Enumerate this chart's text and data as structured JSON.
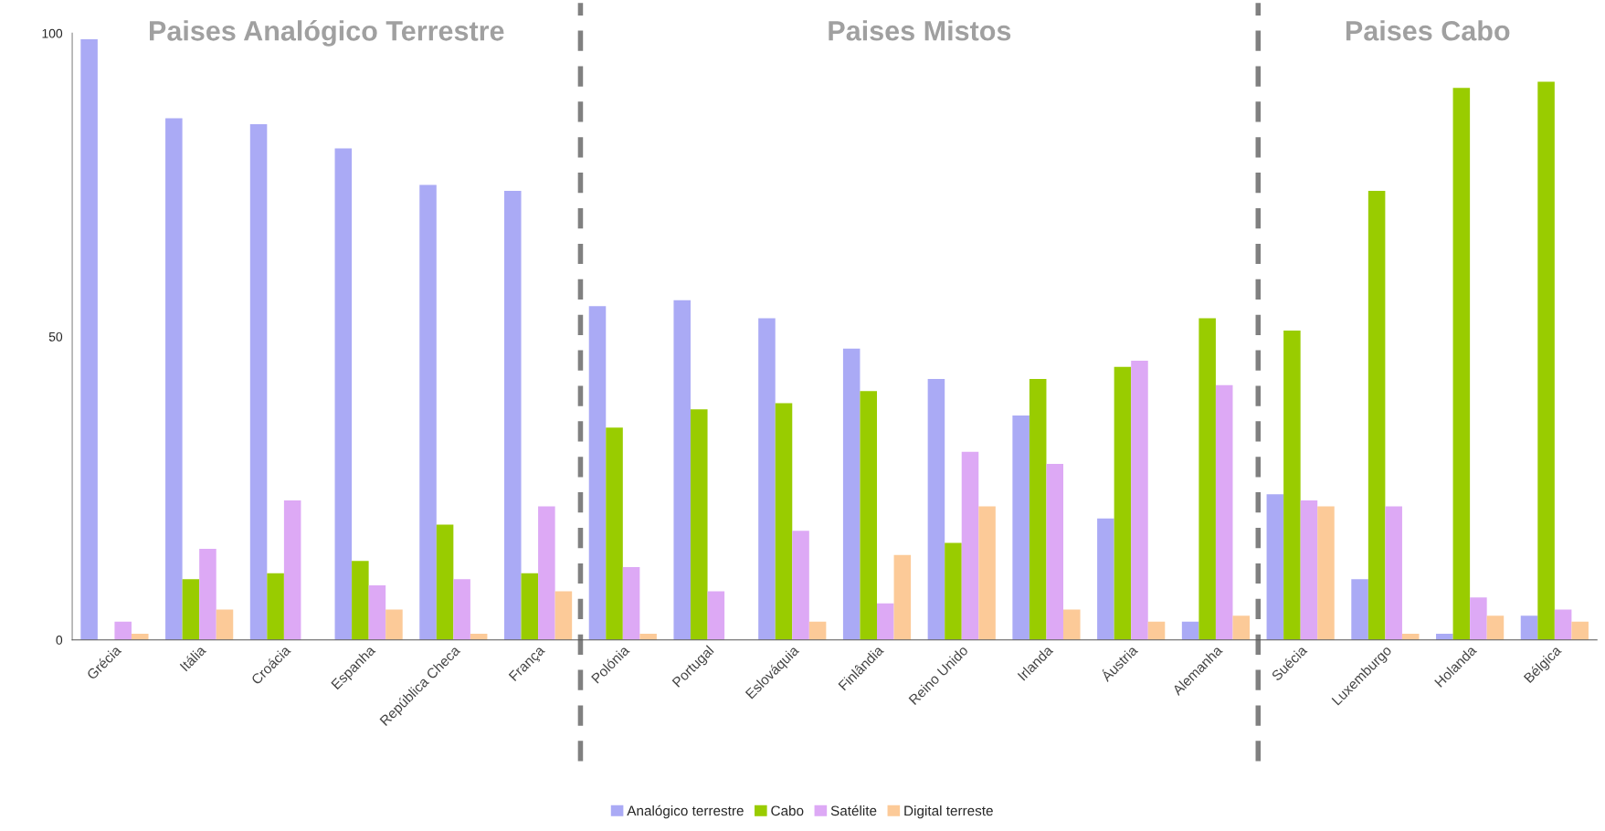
{
  "chart_data": {
    "type": "bar",
    "categories": [
      "Grécia",
      "Itália",
      "Croácia",
      "Espanha",
      "República Checa",
      "França",
      "Polónia",
      "Portugal",
      "Eslováquia",
      "Finlândia",
      "Reino Unido",
      "Irlanda",
      "Áustria",
      "Alemanha",
      "Suécia",
      "Luxemburgo",
      "Holanda",
      "Bélgica"
    ],
    "series": [
      {
        "name": "Analógico terrestre",
        "color": "#aaaaf5",
        "values": [
          99,
          86,
          85,
          81,
          75,
          74,
          55,
          56,
          53,
          48,
          43,
          37,
          20,
          3,
          24,
          10,
          1,
          4
        ]
      },
      {
        "name": "Cabo",
        "color": "#99cc00",
        "values": [
          0,
          10,
          11,
          13,
          19,
          11,
          35,
          38,
          39,
          41,
          16,
          43,
          45,
          53,
          51,
          74,
          91,
          92
        ]
      },
      {
        "name": "Satélite",
        "color": "#dda9f5",
        "values": [
          3,
          15,
          23,
          9,
          10,
          22,
          12,
          8,
          18,
          6,
          31,
          29,
          46,
          42,
          23,
          22,
          7,
          5
        ]
      },
      {
        "name": "Digital terreste",
        "color": "#fcca98",
        "values": [
          1,
          5,
          0,
          5,
          1,
          8,
          1,
          0,
          3,
          14,
          22,
          5,
          3,
          4,
          22,
          1,
          4,
          3
        ]
      }
    ],
    "ylim": [
      0,
      100
    ],
    "yticks": [
      0,
      50,
      100
    ],
    "grid": false,
    "legend": "bottom",
    "annotations": [
      "Paises Analógico Terrestre",
      "Paises Mistos",
      "Paises Cabo"
    ]
  }
}
